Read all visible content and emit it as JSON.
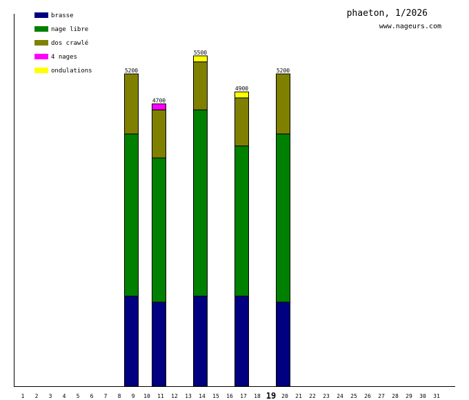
{
  "title": "phaeton, 1/2026",
  "site": "www.nageurs.com",
  "colors": {
    "brasse": "#000080",
    "nage libre": "#008000",
    "dos crawlé": "#808000",
    "4 nages": "#ff00ff",
    "ondulations": "#ffff00"
  },
  "chart_data": {
    "type": "bar",
    "stacked": true,
    "categories": [
      "1",
      "2",
      "3",
      "4",
      "5",
      "6",
      "7",
      "8",
      "9",
      "10",
      "11",
      "12",
      "13",
      "14",
      "15",
      "16",
      "17",
      "18",
      "19",
      "20",
      "21",
      "22",
      "23",
      "24",
      "25",
      "26",
      "27",
      "28",
      "29",
      "30",
      "31"
    ],
    "highlight_category": "19",
    "legend_position": "top-left",
    "grid": false,
    "ylim": [
      0,
      6200
    ],
    "series": [
      {
        "name": "brasse",
        "values": [
          0,
          0,
          0,
          0,
          0,
          0,
          0,
          1500,
          0,
          1400,
          0,
          0,
          1500,
          0,
          0,
          1500,
          0,
          0,
          1400,
          0,
          0,
          0,
          0,
          0,
          0,
          0,
          0,
          0,
          0,
          0,
          0
        ]
      },
      {
        "name": "nage libre",
        "values": [
          0,
          0,
          0,
          0,
          0,
          0,
          0,
          2700,
          0,
          2400,
          0,
          0,
          3100,
          0,
          0,
          2500,
          0,
          0,
          2800,
          0,
          0,
          0,
          0,
          0,
          0,
          0,
          0,
          0,
          0,
          0,
          0
        ]
      },
      {
        "name": "dos crawlé",
        "values": [
          0,
          0,
          0,
          0,
          0,
          0,
          0,
          1000,
          0,
          800,
          0,
          0,
          800,
          0,
          0,
          800,
          0,
          0,
          1000,
          0,
          0,
          0,
          0,
          0,
          0,
          0,
          0,
          0,
          0,
          0,
          0
        ]
      },
      {
        "name": "4 nages",
        "values": [
          0,
          0,
          0,
          0,
          0,
          0,
          0,
          0,
          0,
          100,
          0,
          0,
          0,
          0,
          0,
          0,
          0,
          0,
          0,
          0,
          0,
          0,
          0,
          0,
          0,
          0,
          0,
          0,
          0,
          0,
          0
        ]
      },
      {
        "name": "ondulations",
        "values": [
          0,
          0,
          0,
          0,
          0,
          0,
          0,
          0,
          0,
          0,
          0,
          0,
          100,
          0,
          0,
          100,
          0,
          0,
          0,
          0,
          0,
          0,
          0,
          0,
          0,
          0,
          0,
          0,
          0,
          0,
          0
        ]
      }
    ],
    "totals": [
      null,
      null,
      null,
      null,
      null,
      null,
      null,
      5200,
      null,
      4700,
      null,
      null,
      5500,
      null,
      null,
      4900,
      null,
      null,
      5200,
      null,
      null,
      null,
      null,
      null,
      null,
      null,
      null,
      null,
      null,
      null,
      null
    ]
  }
}
